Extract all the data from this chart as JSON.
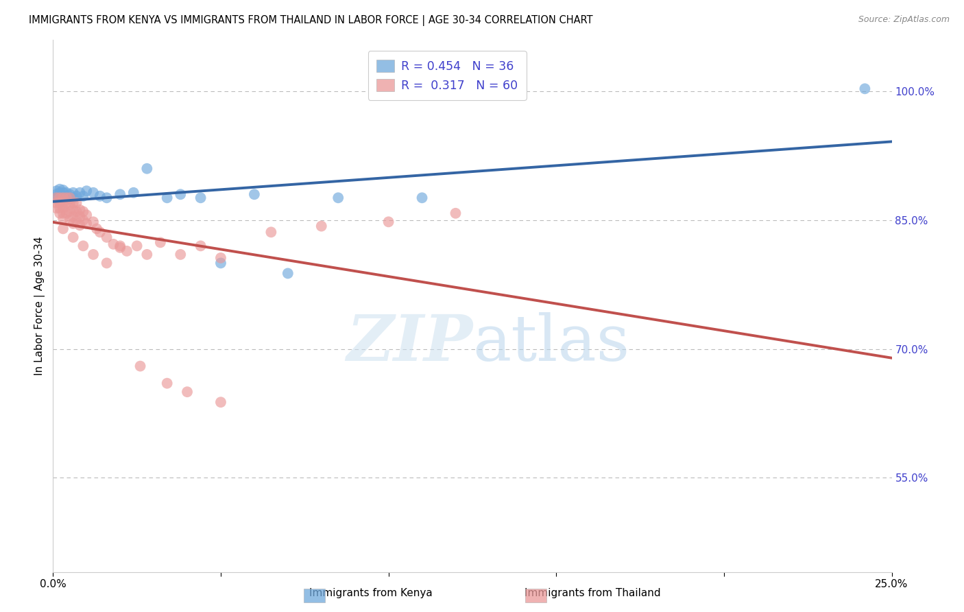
{
  "title": "IMMIGRANTS FROM KENYA VS IMMIGRANTS FROM THAILAND IN LABOR FORCE | AGE 30-34 CORRELATION CHART",
  "source": "Source: ZipAtlas.com",
  "ylabel": "In Labor Force | Age 30-34",
  "xlim": [
    0.0,
    0.25
  ],
  "ylim": [
    0.44,
    1.06
  ],
  "kenya_color": "#6fa8dc",
  "thailand_color": "#ea9999",
  "kenya_R": 0.454,
  "kenya_N": 36,
  "thailand_R": 0.317,
  "thailand_N": 60,
  "kenya_line_color": "#3465a4",
  "thailand_line_color": "#c0504d",
  "background_color": "#ffffff",
  "grid_color": "#bbbbbb",
  "axis_label_color": "#4040cc",
  "ytick_positions": [
    0.55,
    0.7,
    0.85,
    1.0
  ],
  "ytick_labels": [
    "55.0%",
    "70.0%",
    "85.0%",
    "100.0%"
  ],
  "xtick_positions": [
    0.0,
    0.05,
    0.1,
    0.15,
    0.2,
    0.25
  ],
  "xtick_labels": [
    "0.0%",
    "",
    "",
    "",
    "",
    "25.0%"
  ],
  "kenya_x": [
    0.001,
    0.001,
    0.001,
    0.002,
    0.002,
    0.002,
    0.003,
    0.003,
    0.003,
    0.003,
    0.004,
    0.004,
    0.004,
    0.005,
    0.005,
    0.006,
    0.006,
    0.007,
    0.008,
    0.009,
    0.01,
    0.012,
    0.014,
    0.016,
    0.02,
    0.024,
    0.028,
    0.034,
    0.038,
    0.044,
    0.05,
    0.06,
    0.07,
    0.085,
    0.11,
    0.242
  ],
  "kenya_y": [
    0.876,
    0.88,
    0.884,
    0.876,
    0.882,
    0.886,
    0.876,
    0.882,
    0.878,
    0.885,
    0.876,
    0.882,
    0.878,
    0.88,
    0.875,
    0.882,
    0.876,
    0.878,
    0.882,
    0.878,
    0.884,
    0.882,
    0.878,
    0.876,
    0.88,
    0.882,
    0.91,
    0.876,
    0.88,
    0.876,
    0.8,
    0.88,
    0.788,
    0.876,
    0.876,
    1.003
  ],
  "thailand_x": [
    0.001,
    0.001,
    0.001,
    0.002,
    0.002,
    0.002,
    0.002,
    0.003,
    0.003,
    0.003,
    0.003,
    0.003,
    0.004,
    0.004,
    0.004,
    0.005,
    0.005,
    0.005,
    0.005,
    0.006,
    0.006,
    0.006,
    0.006,
    0.007,
    0.007,
    0.007,
    0.008,
    0.008,
    0.008,
    0.009,
    0.009,
    0.01,
    0.01,
    0.012,
    0.013,
    0.014,
    0.016,
    0.018,
    0.02,
    0.022,
    0.025,
    0.028,
    0.032,
    0.038,
    0.044,
    0.05,
    0.065,
    0.08,
    0.1,
    0.12,
    0.003,
    0.006,
    0.009,
    0.012,
    0.016,
    0.02,
    0.026,
    0.034,
    0.04,
    0.05
  ],
  "thailand_y": [
    0.876,
    0.87,
    0.864,
    0.876,
    0.87,
    0.864,
    0.858,
    0.876,
    0.87,
    0.864,
    0.858,
    0.852,
    0.876,
    0.87,
    0.858,
    0.876,
    0.868,
    0.86,
    0.85,
    0.87,
    0.862,
    0.854,
    0.846,
    0.87,
    0.86,
    0.85,
    0.862,
    0.854,
    0.844,
    0.86,
    0.85,
    0.856,
    0.846,
    0.848,
    0.84,
    0.836,
    0.83,
    0.822,
    0.818,
    0.814,
    0.82,
    0.81,
    0.824,
    0.81,
    0.82,
    0.806,
    0.836,
    0.843,
    0.848,
    0.858,
    0.84,
    0.83,
    0.82,
    0.81,
    0.8,
    0.82,
    0.68,
    0.66,
    0.65,
    0.638
  ]
}
